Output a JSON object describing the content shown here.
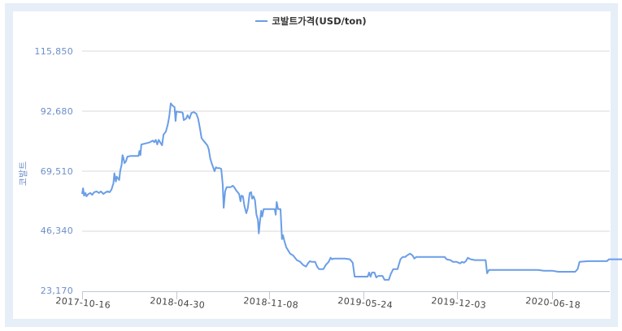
{
  "legend": {
    "label": "코발트가격(USD/ton)",
    "color": "#6a9ee6"
  },
  "y_axis": {
    "title": "코발트",
    "ticks": [
      "115,850",
      "92,680",
      "69,510",
      "46,340",
      "23,170"
    ]
  },
  "x_axis": {
    "ticks": [
      "2017-10-16",
      "2018-04-30",
      "2018-11-08",
      "2019-05-24",
      "2019-12-03",
      "2020-06-18"
    ]
  },
  "colors": {
    "line": "#6a9ee6",
    "grid": "#d8d8d8",
    "frame": "#e6eef8",
    "axis_label": "#6b8ec9"
  },
  "chart_data": {
    "type": "line",
    "title": "",
    "xlabel": "",
    "ylabel": "코발트",
    "ylim": [
      23170,
      115850
    ],
    "yticks": [
      23170,
      46340,
      69510,
      92680,
      115850
    ],
    "xticks": [
      "2017-10-16",
      "2018-04-30",
      "2018-11-08",
      "2019-05-24",
      "2019-12-03",
      "2020-06-18"
    ],
    "grid": true,
    "legend_position": "top",
    "series": [
      {
        "name": "코발트가격(USD/ton)",
        "color": "#6a9ee6",
        "points": [
          [
            "2017-10-16",
            60700
          ],
          [
            "2017-10-18",
            62900
          ],
          [
            "2017-10-20",
            60100
          ],
          [
            "2017-10-23",
            61100
          ],
          [
            "2017-10-25",
            59800
          ],
          [
            "2017-10-29",
            60700
          ],
          [
            "2017-11-02",
            61100
          ],
          [
            "2017-11-06",
            60400
          ],
          [
            "2017-11-10",
            61400
          ],
          [
            "2017-11-15",
            61700
          ],
          [
            "2017-11-20",
            61100
          ],
          [
            "2017-11-24",
            61700
          ],
          [
            "2017-11-29",
            60700
          ],
          [
            "2017-12-04",
            61400
          ],
          [
            "2017-12-08",
            61700
          ],
          [
            "2017-12-12",
            61400
          ],
          [
            "2017-12-16",
            62400
          ],
          [
            "2017-12-20",
            64800
          ],
          [
            "2017-12-22",
            68700
          ],
          [
            "2017-12-25",
            65500
          ],
          [
            "2017-12-27",
            67400
          ],
          [
            "2018-01-01",
            66100
          ],
          [
            "2018-01-03",
            69500
          ],
          [
            "2018-01-06",
            72000
          ],
          [
            "2018-01-08",
            75700
          ],
          [
            "2018-01-10",
            74500
          ],
          [
            "2018-01-12",
            72600
          ],
          [
            "2018-01-15",
            73300
          ],
          [
            "2018-01-18",
            75100
          ],
          [
            "2018-01-25",
            75400
          ],
          [
            "2018-02-05",
            75400
          ],
          [
            "2018-02-10",
            75400
          ],
          [
            "2018-02-12",
            77300
          ],
          [
            "2018-02-14",
            75700
          ],
          [
            "2018-02-16",
            79800
          ],
          [
            "2018-02-22",
            80100
          ],
          [
            "2018-03-01",
            80400
          ],
          [
            "2018-03-06",
            80700
          ],
          [
            "2018-03-12",
            81300
          ],
          [
            "2018-03-15",
            80700
          ],
          [
            "2018-03-18",
            81600
          ],
          [
            "2018-03-21",
            79800
          ],
          [
            "2018-03-24",
            81600
          ],
          [
            "2018-03-28",
            80400
          ],
          [
            "2018-03-31",
            79500
          ],
          [
            "2018-04-03",
            83600
          ],
          [
            "2018-04-08",
            84800
          ],
          [
            "2018-04-12",
            87600
          ],
          [
            "2018-04-15",
            90700
          ],
          [
            "2018-04-18",
            95700
          ],
          [
            "2018-04-22",
            94800
          ],
          [
            "2018-04-26",
            94200
          ],
          [
            "2018-04-28",
            88900
          ],
          [
            "2018-04-30",
            92600
          ],
          [
            "2018-05-06",
            92300
          ],
          [
            "2018-05-10",
            92300
          ],
          [
            "2018-05-13",
            92000
          ],
          [
            "2018-05-15",
            89200
          ],
          [
            "2018-05-20",
            89800
          ],
          [
            "2018-05-23",
            91100
          ],
          [
            "2018-05-27",
            89800
          ],
          [
            "2018-05-31",
            92000
          ],
          [
            "2018-06-05",
            92300
          ],
          [
            "2018-06-10",
            91700
          ],
          [
            "2018-06-14",
            89800
          ],
          [
            "2018-06-18",
            85700
          ],
          [
            "2018-06-21",
            82300
          ],
          [
            "2018-06-25",
            81300
          ],
          [
            "2018-06-29",
            80400
          ],
          [
            "2018-07-03",
            79500
          ],
          [
            "2018-07-06",
            77900
          ],
          [
            "2018-07-09",
            74500
          ],
          [
            "2018-07-12",
            72600
          ],
          [
            "2018-07-15",
            71000
          ],
          [
            "2018-07-18",
            69500
          ],
          [
            "2018-07-21",
            71000
          ],
          [
            "2018-07-24",
            70700
          ],
          [
            "2018-07-28",
            70700
          ],
          [
            "2018-08-01",
            70400
          ],
          [
            "2018-08-04",
            64500
          ],
          [
            "2018-08-06",
            55400
          ],
          [
            "2018-08-09",
            61700
          ],
          [
            "2018-08-12",
            63300
          ],
          [
            "2018-08-20",
            63300
          ],
          [
            "2018-08-25",
            63900
          ],
          [
            "2018-08-28",
            63300
          ],
          [
            "2018-09-01",
            62100
          ],
          [
            "2018-09-04",
            61400
          ],
          [
            "2018-09-07",
            60700
          ],
          [
            "2018-09-10",
            57900
          ],
          [
            "2018-09-12",
            60100
          ],
          [
            "2018-09-15",
            59800
          ],
          [
            "2018-09-18",
            56100
          ],
          [
            "2018-09-22",
            53300
          ],
          [
            "2018-09-25",
            55100
          ],
          [
            "2018-09-29",
            61100
          ],
          [
            "2018-10-02",
            61400
          ],
          [
            "2018-10-04",
            58900
          ],
          [
            "2018-10-07",
            59800
          ],
          [
            "2018-10-10",
            58300
          ],
          [
            "2018-10-13",
            52700
          ],
          [
            "2018-10-16",
            50800
          ],
          [
            "2018-10-18",
            45500
          ],
          [
            "2018-10-20",
            49500
          ],
          [
            "2018-10-23",
            54300
          ],
          [
            "2018-10-25",
            52000
          ],
          [
            "2018-10-28",
            54900
          ],
          [
            "2018-11-05",
            54900
          ],
          [
            "2018-11-15",
            54900
          ],
          [
            "2018-11-20",
            54900
          ],
          [
            "2018-11-22",
            52700
          ],
          [
            "2018-11-24",
            57600
          ],
          [
            "2018-11-27",
            54900
          ],
          [
            "2018-12-02",
            54900
          ],
          [
            "2018-12-05",
            43300
          ],
          [
            "2018-12-07",
            44800
          ],
          [
            "2018-12-10",
            42600
          ],
          [
            "2018-12-14",
            40100
          ],
          [
            "2018-12-18",
            38900
          ],
          [
            "2018-12-22",
            37700
          ],
          [
            "2018-12-28",
            37000
          ],
          [
            "2019-01-05",
            35200
          ],
          [
            "2019-01-12",
            34500
          ],
          [
            "2019-01-18",
            33300
          ],
          [
            "2019-01-24",
            32700
          ],
          [
            "2019-01-28",
            33900
          ],
          [
            "2019-02-01",
            34800
          ],
          [
            "2019-02-05",
            34500
          ],
          [
            "2019-02-12",
            34500
          ],
          [
            "2019-02-16",
            32700
          ],
          [
            "2019-02-20",
            31700
          ],
          [
            "2019-03-01",
            31700
          ],
          [
            "2019-03-06",
            33300
          ],
          [
            "2019-03-12",
            34500
          ],
          [
            "2019-03-16",
            36100
          ],
          [
            "2019-03-19",
            35500
          ],
          [
            "2019-03-22",
            35800
          ],
          [
            "2019-04-01",
            35800
          ],
          [
            "2019-04-15",
            35800
          ],
          [
            "2019-04-25",
            35500
          ],
          [
            "2019-05-01",
            34200
          ],
          [
            "2019-05-05",
            28800
          ],
          [
            "2019-05-15",
            28800
          ],
          [
            "2019-05-24",
            28800
          ],
          [
            "2019-06-01",
            28800
          ],
          [
            "2019-06-04",
            30400
          ],
          [
            "2019-06-07",
            28800
          ],
          [
            "2019-06-10",
            30400
          ],
          [
            "2019-06-15",
            30400
          ],
          [
            "2019-06-19",
            28500
          ],
          [
            "2019-06-23",
            29100
          ],
          [
            "2019-07-02",
            29100
          ],
          [
            "2019-07-06",
            27600
          ],
          [
            "2019-07-15",
            27600
          ],
          [
            "2019-07-19",
            29800
          ],
          [
            "2019-07-24",
            31700
          ],
          [
            "2019-08-02",
            31700
          ],
          [
            "2019-08-08",
            35500
          ],
          [
            "2019-08-13",
            36400
          ],
          [
            "2019-08-18",
            36400
          ],
          [
            "2019-08-22",
            37000
          ],
          [
            "2019-08-28",
            37700
          ],
          [
            "2019-09-02",
            37000
          ],
          [
            "2019-09-06",
            35800
          ],
          [
            "2019-09-10",
            36400
          ],
          [
            "2019-10-01",
            36400
          ],
          [
            "2019-11-01",
            36400
          ],
          [
            "2019-11-08",
            36400
          ],
          [
            "2019-11-12",
            35500
          ],
          [
            "2019-11-20",
            35200
          ],
          [
            "2019-11-25",
            34500
          ],
          [
            "2019-12-03",
            34500
          ],
          [
            "2019-12-10",
            33900
          ],
          [
            "2019-12-14",
            34500
          ],
          [
            "2019-12-18",
            34200
          ],
          [
            "2019-12-22",
            34800
          ],
          [
            "2019-12-26",
            36100
          ],
          [
            "2020-01-01",
            35500
          ],
          [
            "2020-01-10",
            35200
          ],
          [
            "2020-01-20",
            35200
          ],
          [
            "2020-02-01",
            35200
          ],
          [
            "2020-02-04",
            30100
          ],
          [
            "2020-02-08",
            31400
          ],
          [
            "2020-03-01",
            31400
          ],
          [
            "2020-04-01",
            31400
          ],
          [
            "2020-05-01",
            31400
          ],
          [
            "2020-05-20",
            31400
          ],
          [
            "2020-06-01",
            31100
          ],
          [
            "2020-06-18",
            31100
          ],
          [
            "2020-07-01",
            30700
          ],
          [
            "2020-07-20",
            30700
          ],
          [
            "2020-08-05",
            30700
          ],
          [
            "2020-08-10",
            31700
          ],
          [
            "2020-08-14",
            34500
          ],
          [
            "2020-09-01",
            34800
          ],
          [
            "2020-10-01",
            34800
          ],
          [
            "2020-10-10",
            34800
          ],
          [
            "2020-10-14",
            35500
          ],
          [
            "2020-11-01",
            35500
          ],
          [
            "2020-11-14",
            35500
          ],
          [
            "2020-11-20",
            35200
          ]
        ]
      }
    ]
  }
}
